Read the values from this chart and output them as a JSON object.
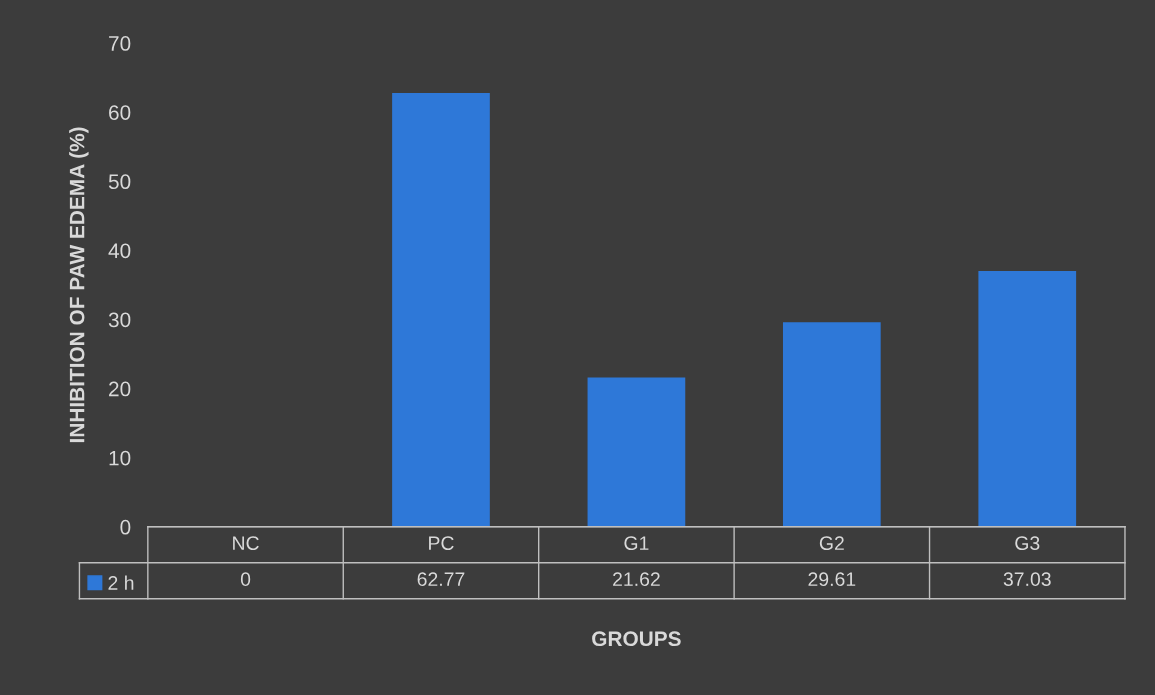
{
  "chart_data": {
    "type": "bar",
    "xlabel": "GROUPS",
    "ylabel": "INHIBITION OF PAW EDEMA (%)",
    "categories": [
      "NC",
      "PC",
      "G1",
      "G2",
      "G3"
    ],
    "series": [
      {
        "name": "2 h",
        "color": "#2e78d8",
        "values": [
          0,
          62.77,
          21.62,
          29.61,
          37.03
        ]
      }
    ],
    "ylim": [
      0,
      70
    ],
    "yticks": [
      0,
      10,
      20,
      30,
      40,
      50,
      60,
      70
    ],
    "data_labels": true,
    "legend": "bottom left",
    "grid": false
  }
}
